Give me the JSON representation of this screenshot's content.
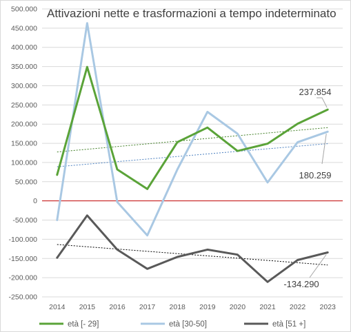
{
  "chart_data": {
    "type": "line",
    "title": "Attivazioni nette e trasformazioni a tempo indeterminato",
    "categories": [
      "2014",
      "2015",
      "2016",
      "2017",
      "2018",
      "2019",
      "2020",
      "2021",
      "2022",
      "2023"
    ],
    "ylim": [
      -250000,
      500000
    ],
    "yticks": [
      -250000,
      -200000,
      -150000,
      -100000,
      -50000,
      0,
      50000,
      100000,
      150000,
      200000,
      250000,
      300000,
      350000,
      400000,
      450000,
      500000
    ],
    "ytick_labels": [
      "-250.000",
      "-200.000",
      "-150.000",
      "-100.000",
      "-50.000",
      "0",
      "50.000",
      "100.000",
      "150.000",
      "200.000",
      "250.000",
      "300.000",
      "350.000",
      "400.000",
      "450.000",
      "500.000"
    ],
    "grid": true,
    "legend_position": "bottom",
    "trendlines": true,
    "series": [
      {
        "name": "età [- 29]",
        "color": "#5aa338",
        "values": [
          68000,
          349000,
          82000,
          31000,
          153000,
          191000,
          130000,
          149000,
          201000,
          237854
        ]
      },
      {
        "name": "età [30-50]",
        "color": "#a9c8e3",
        "values": [
          -50000,
          463000,
          -3000,
          -90000,
          82000,
          232000,
          175000,
          48000,
          153000,
          180259
        ]
      },
      {
        "name": "età [51 +]",
        "color": "#595959",
        "values": [
          -148000,
          -38000,
          -127000,
          -177000,
          -146000,
          -127000,
          -140000,
          -211000,
          -154000,
          -134290
        ]
      }
    ],
    "data_labels": [
      {
        "series": 0,
        "index": 9,
        "text": "237.854"
      },
      {
        "series": 1,
        "index": 9,
        "text": "180.259"
      },
      {
        "series": 2,
        "index": 9,
        "text": "-134.290"
      }
    ]
  }
}
